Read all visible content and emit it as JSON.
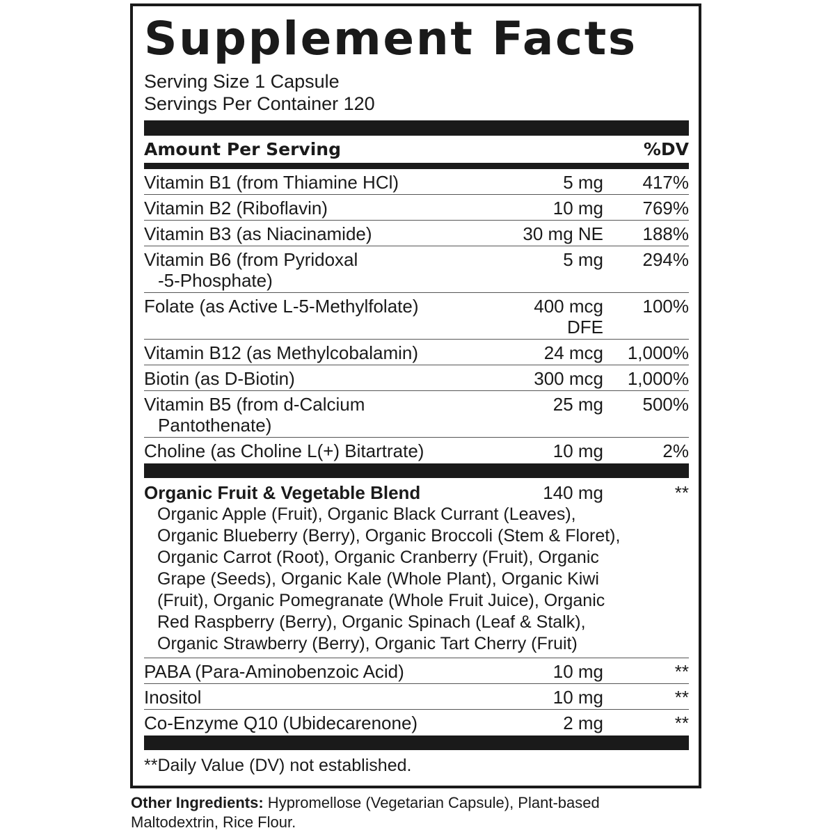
{
  "title": "Supplement Facts",
  "serving_size": "Serving Size 1 Capsule",
  "servings_per_container": "Servings Per Container 120",
  "header": {
    "amount": "Amount Per Serving",
    "dv": "%DV"
  },
  "nutrients": [
    {
      "name": "Vitamin B1 (from Thiamine HCl)",
      "amount": "5 mg",
      "dv": "417%"
    },
    {
      "name": "Vitamin B2 (Riboflavin)",
      "amount": "10 mg",
      "dv": "769%"
    },
    {
      "name": "Vitamin B3 (as Niacinamide)",
      "amount": "30 mg NE",
      "dv": "188%"
    },
    {
      "name": "Vitamin B6 (from Pyridoxal",
      "name2": "-5-Phosphate)",
      "amount": "5 mg",
      "dv": "294%"
    },
    {
      "name": "Folate (as Active L-5-Methylfolate)",
      "amount": "400 mcg",
      "amount2": "DFE",
      "dv": "100%"
    },
    {
      "name": "Vitamin B12 (as Methylcobalamin)",
      "amount": "24 mcg",
      "dv": "1,000%"
    },
    {
      "name": "Biotin (as D-Biotin)",
      "amount": "300 mcg",
      "dv": "1,000%"
    },
    {
      "name": "Vitamin B5 (from d-Calcium",
      "name2": "Pantothenate)",
      "amount": "25 mg",
      "dv": "500%"
    },
    {
      "name": "Choline (as Choline L(+) Bitartrate)",
      "amount": "10 mg",
      "dv": "2%"
    }
  ],
  "blend": {
    "name": "Organic Fruit & Vegetable Blend",
    "amount": "140 mg",
    "dv": "**",
    "ingredients_lines": [
      "Organic Apple (Fruit), Organic Black Currant (Leaves),",
      "Organic Blueberry (Berry), Organic Broccoli (Stem & Floret),",
      "Organic Carrot (Root), Organic Cranberry (Fruit), Organic",
      "Grape (Seeds), Organic Kale (Whole Plant), Organic Kiwi",
      "(Fruit), Organic Pomegranate (Whole Fruit Juice), Organic",
      "Red Raspberry (Berry), Organic Spinach (Leaf & Stalk),",
      "Organic Strawberry (Berry), Organic Tart Cherry (Fruit)"
    ]
  },
  "others": [
    {
      "name": "PABA (Para-Aminobenzoic Acid)",
      "amount": "10 mg",
      "dv": "**"
    },
    {
      "name": "Inositol",
      "amount": "10 mg",
      "dv": "**"
    },
    {
      "name": "Co-Enzyme Q10 (Ubidecarenone)",
      "amount": "2 mg",
      "dv": "**"
    }
  ],
  "footnote": "**Daily Value (DV) not established.",
  "other_ingredients": {
    "label": "Other Ingredients:",
    "text": " Hypromellose (Vegetarian Capsule), Plant-based Maltodextrin, Rice Flour."
  }
}
